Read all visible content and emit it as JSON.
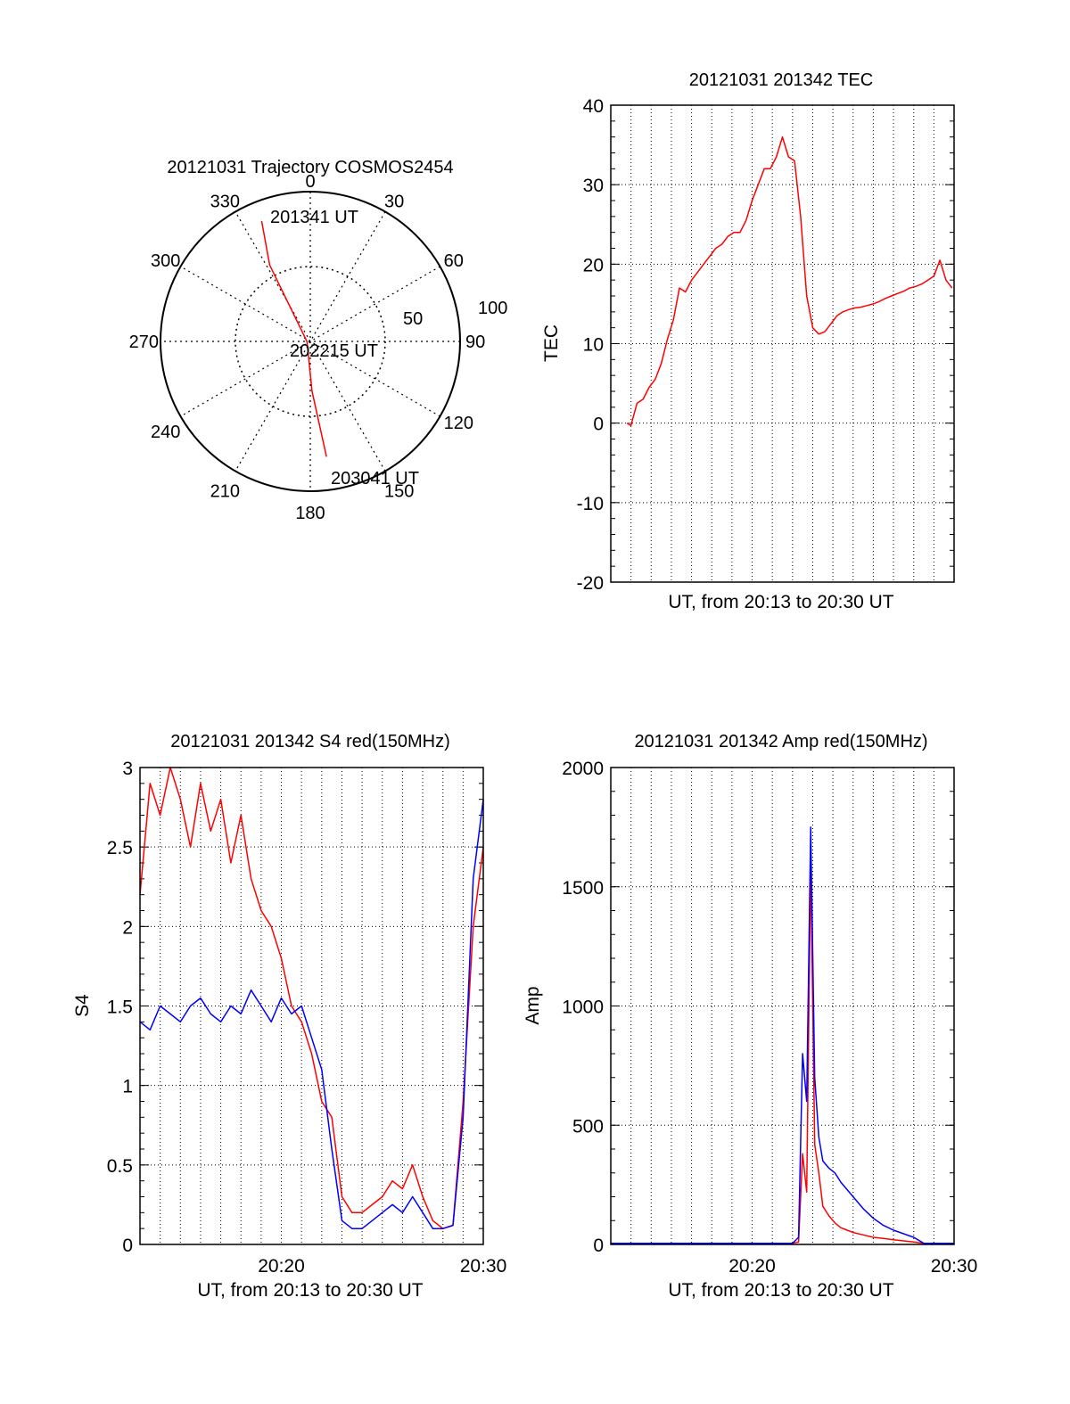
{
  "chart_data": [
    {
      "type": "polar",
      "title": "20121031 Trajectory COSMOS2454",
      "azimuth_ticks": [
        "0",
        "30",
        "60",
        "90",
        "120",
        "150",
        "180",
        "210",
        "240",
        "270",
        "300",
        "330"
      ],
      "radial_ticks": [
        "50",
        "100"
      ],
      "track_color": "#ff0000",
      "track": [
        {
          "az": 338,
          "el": 12
        },
        {
          "az": 332,
          "el": 38
        },
        {
          "az": 268,
          "el": 88
        },
        {
          "az": 178,
          "el": 60
        },
        {
          "az": 172,
          "el": 20
        }
      ],
      "time_labels": [
        "201341 UT",
        "202215 UT",
        "203041 UT"
      ]
    },
    {
      "type": "line",
      "title": "20121031 201342 TEC",
      "xlabel": "UT, from 20:13 to 20:30 UT",
      "ylabel": "TEC",
      "xlim": [
        13.0,
        30.0
      ],
      "ylim": [
        -20,
        40
      ],
      "yticks": [
        "-20",
        "-10",
        "0",
        "10",
        "20",
        "30",
        "40"
      ],
      "xticks": [],
      "grid": true,
      "series": [
        {
          "color": "#ff0000",
          "x": [
            13.8,
            14.0,
            14.3,
            14.6,
            14.9,
            15.2,
            15.5,
            15.8,
            16.1,
            16.4,
            16.7,
            17.0,
            17.3,
            17.6,
            17.9,
            18.2,
            18.5,
            18.8,
            19.1,
            19.4,
            19.7,
            20.0,
            20.3,
            20.6,
            20.9,
            21.2,
            21.5,
            21.8,
            22.1,
            22.4,
            22.7,
            23.0,
            23.3,
            23.6,
            23.9,
            24.2,
            24.5,
            24.8,
            25.1,
            25.4,
            25.7,
            26.0,
            26.3,
            26.6,
            26.9,
            27.2,
            27.5,
            27.8,
            28.1,
            28.4,
            28.7,
            29.0,
            29.3,
            29.6,
            29.9
          ],
          "y": [
            0,
            -0.3,
            2.5,
            3,
            4.5,
            5.5,
            7.5,
            10.5,
            13,
            17,
            16.5,
            18,
            19,
            20,
            21,
            22,
            22.5,
            23.5,
            24,
            24,
            25.5,
            28,
            30,
            32,
            32,
            33.5,
            36,
            33.5,
            33,
            26,
            16,
            12,
            11.2,
            11.5,
            12.5,
            13.5,
            14,
            14.3,
            14.5,
            14.6,
            14.8,
            15,
            15.3,
            15.7,
            16,
            16.3,
            16.6,
            17,
            17.2,
            17.5,
            18,
            18.5,
            20.5,
            18,
            17
          ]
        }
      ]
    },
    {
      "type": "line",
      "title": "20121031 201342 S4 red(150MHz)",
      "xlabel": "UT, from 20:13 to 20:30 UT",
      "ylabel": "S4",
      "xlim": [
        13.0,
        30.0
      ],
      "ylim": [
        0,
        3
      ],
      "yticks": [
        "0",
        "0.5",
        "1",
        "1.5",
        "2",
        "2.5",
        "3"
      ],
      "xticks": [
        {
          "value": 20,
          "label": "20:20"
        },
        {
          "value": 30,
          "label": "20:30"
        }
      ],
      "grid": true,
      "series": [
        {
          "color": "#ff0000",
          "x": [
            13.0,
            13.5,
            14.0,
            14.5,
            15.0,
            15.5,
            16.0,
            16.5,
            17.0,
            17.5,
            18.0,
            18.5,
            19.0,
            19.5,
            20.0,
            20.5,
            21.0,
            21.5,
            22.0,
            22.5,
            23.0,
            23.5,
            24.0,
            24.5,
            25.0,
            25.5,
            26.0,
            26.5,
            27.0,
            27.5,
            28.0,
            28.5,
            29.0,
            29.5,
            30.0
          ],
          "y": [
            2.2,
            2.9,
            2.7,
            3.0,
            2.8,
            2.5,
            2.9,
            2.6,
            2.8,
            2.4,
            2.7,
            2.3,
            2.1,
            2.0,
            1.8,
            1.5,
            1.4,
            1.2,
            0.9,
            0.8,
            0.3,
            0.2,
            0.2,
            0.25,
            0.3,
            0.4,
            0.35,
            0.5,
            0.3,
            0.15,
            0.1,
            0.12,
            0.9,
            2.0,
            2.5
          ]
        },
        {
          "color": "#0000ff",
          "x": [
            13.0,
            13.5,
            14.0,
            14.5,
            15.0,
            15.5,
            16.0,
            16.5,
            17.0,
            17.5,
            18.0,
            18.5,
            19.0,
            19.5,
            20.0,
            20.5,
            21.0,
            21.5,
            22.0,
            22.5,
            23.0,
            23.5,
            24.0,
            24.5,
            25.0,
            25.5,
            26.0,
            26.5,
            27.0,
            27.5,
            28.0,
            28.5,
            29.0,
            29.5,
            30.0
          ],
          "y": [
            1.4,
            1.35,
            1.5,
            1.45,
            1.4,
            1.5,
            1.55,
            1.45,
            1.4,
            1.5,
            1.45,
            1.6,
            1.5,
            1.4,
            1.55,
            1.45,
            1.5,
            1.3,
            1.1,
            0.6,
            0.15,
            0.1,
            0.1,
            0.15,
            0.2,
            0.25,
            0.2,
            0.3,
            0.2,
            0.1,
            0.1,
            0.12,
            0.8,
            2.3,
            2.8
          ]
        }
      ]
    },
    {
      "type": "line",
      "title": "20121031 201342 Amp red(150MHz)",
      "xlabel": "UT, from 20:13 to 20:30 UT",
      "ylabel": "Amp",
      "xlim": [
        13.0,
        30.0
      ],
      "ylim": [
        0,
        2000
      ],
      "yticks": [
        "0",
        "500",
        "1000",
        "1500",
        "2000"
      ],
      "xticks": [
        {
          "value": 20,
          "label": "20:20"
        },
        {
          "value": 30,
          "label": "20:30"
        }
      ],
      "grid": true,
      "series": [
        {
          "color": "#ff0000",
          "x": [
            13.0,
            15.0,
            17.0,
            19.0,
            21.0,
            22.0,
            22.3,
            22.5,
            22.7,
            22.9,
            23.1,
            23.3,
            23.5,
            23.8,
            24.1,
            24.4,
            24.7,
            25.0,
            25.5,
            26.0,
            26.5,
            27.0,
            27.5,
            28.0,
            28.5,
            29.0,
            30.0
          ],
          "y": [
            5,
            5,
            5,
            5,
            5,
            5,
            10,
            380,
            220,
            1600,
            420,
            300,
            160,
            120,
            90,
            70,
            60,
            50,
            40,
            30,
            25,
            20,
            15,
            10,
            5,
            5,
            5
          ]
        },
        {
          "color": "#0000ff",
          "x": [
            13.0,
            15.0,
            17.0,
            19.0,
            21.0,
            22.0,
            22.3,
            22.5,
            22.7,
            22.9,
            23.1,
            23.3,
            23.5,
            23.8,
            24.1,
            24.4,
            24.7,
            25.0,
            25.5,
            26.0,
            26.5,
            27.0,
            27.5,
            28.0,
            28.5,
            29.0,
            30.0
          ],
          "y": [
            5,
            5,
            5,
            5,
            5,
            5,
            30,
            800,
            600,
            1750,
            700,
            450,
            350,
            320,
            300,
            260,
            230,
            200,
            150,
            110,
            80,
            60,
            45,
            30,
            5,
            5,
            5
          ]
        }
      ]
    }
  ]
}
